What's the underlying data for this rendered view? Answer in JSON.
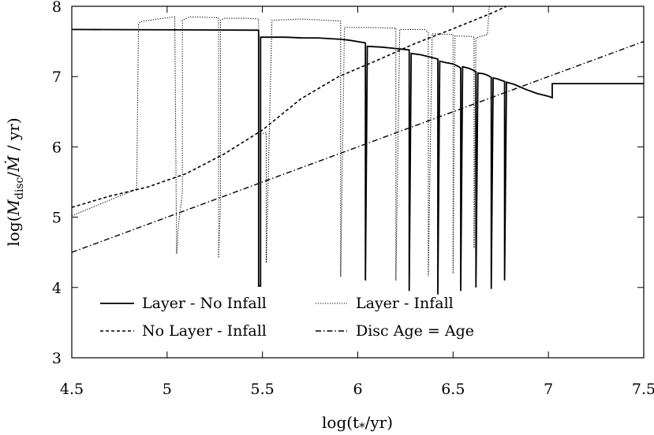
{
  "chart_data": {
    "type": "line",
    "title": "",
    "xlabel": "log(t*/yr)",
    "ylabel": "log(Mdisc/Ṁ / yr)",
    "xlim": [
      4.5,
      7.5
    ],
    "ylim": [
      3,
      8
    ],
    "xticks": [
      4.5,
      5,
      5.5,
      6,
      6.5,
      7,
      7.5
    ],
    "xtick_labels": [
      "4.5",
      "5",
      "5.5",
      "6",
      "6.5",
      "7",
      "7.5"
    ],
    "yticks": [
      3,
      4,
      5,
      6,
      7,
      8
    ],
    "ytick_labels": [
      "3",
      "4",
      "5",
      "6",
      "7",
      "8"
    ],
    "grid": false,
    "legend_position": "bottom-left",
    "colors": {
      "line": "#000000",
      "background": "#ffffff"
    },
    "series": [
      {
        "name": "Layer - No Infall",
        "style": "solid",
        "x": [
          4.5,
          5.48,
          5.48,
          5.49,
          5.49,
          5.62,
          5.71,
          5.79,
          5.85,
          5.91,
          5.95,
          6.04,
          6.04,
          6.05,
          6.12,
          6.16,
          6.27,
          6.27,
          6.28,
          6.33,
          6.36,
          6.42,
          6.42,
          6.43,
          6.46,
          6.5,
          6.53,
          6.54,
          6.54,
          6.55,
          6.58,
          6.6,
          6.62,
          6.62,
          6.63,
          6.66,
          6.68,
          6.7,
          6.7,
          6.71,
          6.73,
          6.75,
          6.77,
          6.77,
          6.78,
          6.82,
          6.88,
          6.94,
          7.0,
          7.02,
          7.02,
          7.05,
          7.5
        ],
        "y": [
          7.67,
          7.66,
          4.02,
          4.02,
          7.56,
          7.56,
          7.55,
          7.55,
          7.54,
          7.53,
          7.52,
          7.48,
          4.1,
          7.43,
          7.42,
          7.41,
          7.38,
          3.95,
          7.33,
          7.31,
          7.29,
          7.25,
          3.9,
          7.22,
          7.2,
          7.18,
          7.14,
          7.12,
          3.95,
          7.14,
          7.12,
          7.1,
          7.07,
          4.0,
          7.05,
          7.04,
          7.02,
          6.99,
          3.98,
          6.98,
          6.97,
          6.95,
          6.93,
          4.1,
          6.92,
          6.89,
          6.82,
          6.76,
          6.72,
          6.7,
          6.9,
          6.9,
          6.9
        ]
      },
      {
        "name": "Layer - Infall",
        "style": "dotted",
        "x": [
          4.5,
          4.84,
          4.85,
          4.86,
          4.95,
          5.04,
          5.05,
          5.06,
          5.08,
          5.08,
          5.1,
          5.12,
          5.25,
          5.27,
          5.27,
          5.28,
          5.28,
          5.3,
          5.42,
          5.48,
          5.48,
          5.52,
          5.52,
          5.55,
          5.7,
          5.91,
          5.91,
          5.93,
          6.05,
          6.2,
          6.2,
          6.22,
          6.35,
          6.37,
          6.37,
          6.39,
          6.49,
          6.5,
          6.5,
          6.51,
          6.6,
          6.61,
          6.61,
          6.62,
          6.68,
          6.69
        ],
        "y": [
          5.02,
          5.4,
          7.74,
          7.78,
          7.82,
          7.85,
          4.48,
          4.9,
          5.35,
          7.8,
          7.83,
          7.85,
          7.84,
          7.84,
          4.42,
          5.22,
          7.8,
          7.83,
          7.83,
          7.82,
          6.18,
          6.2,
          4.35,
          7.8,
          7.82,
          7.79,
          4.15,
          7.7,
          7.7,
          7.69,
          4.1,
          7.67,
          7.67,
          7.63,
          4.16,
          7.61,
          7.6,
          7.6,
          4.2,
          7.58,
          7.57,
          7.56,
          4.56,
          7.55,
          7.6,
          8.0
        ]
      },
      {
        "name": "No Layer - Infall",
        "style": "dashed",
        "x": [
          4.5,
          4.7,
          4.9,
          5.1,
          5.3,
          5.5,
          5.7,
          5.9,
          6.1,
          6.3,
          6.5,
          6.7,
          6.78
        ],
        "y": [
          5.14,
          5.3,
          5.43,
          5.62,
          5.9,
          6.24,
          6.68,
          7.0,
          7.23,
          7.47,
          7.68,
          7.9,
          8.0
        ]
      },
      {
        "name": "Disc Age = Age",
        "style": "dashdot",
        "x": [
          4.5,
          7.5
        ],
        "y": [
          4.5,
          7.5
        ]
      }
    ]
  }
}
